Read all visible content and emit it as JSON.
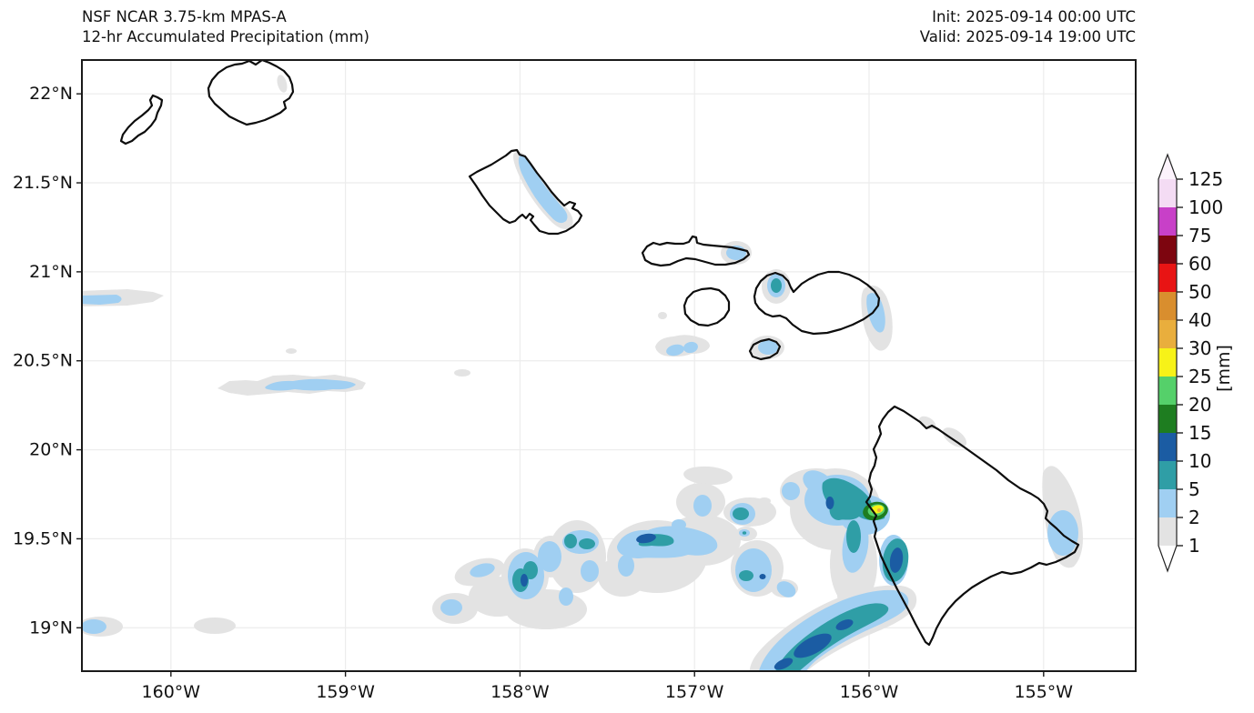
{
  "header": {
    "title_line1": "NSF NCAR 3.75-km MPAS-A",
    "title_line2": "12-hr Accumulated Precipitation (mm)",
    "init": "Init: 2025-09-14 00:00 UTC",
    "valid": "Valid: 2025-09-14 19:00 UTC"
  },
  "axes": {
    "x_ticks": [
      {
        "label": "160°W",
        "lon": 160
      },
      {
        "label": "159°W",
        "lon": 159
      },
      {
        "label": "158°W",
        "lon": 158
      },
      {
        "label": "157°W",
        "lon": 157
      },
      {
        "label": "156°W",
        "lon": 156
      },
      {
        "label": "155°W",
        "lon": 155
      }
    ],
    "y_ticks": [
      {
        "label": "22°N",
        "lat": 22
      },
      {
        "label": "21.5°N",
        "lat": 21.5
      },
      {
        "label": "21°N",
        "lat": 21
      },
      {
        "label": "20.5°N",
        "lat": 20.5
      },
      {
        "label": "20°N",
        "lat": 20
      },
      {
        "label": "19.5°N",
        "lat": 19.5
      },
      {
        "label": "19°N",
        "lat": 19
      }
    ]
  },
  "colorbar": {
    "unit_label": "[mm]",
    "tick_labels": [
      "1",
      "2",
      "5",
      "10",
      "15",
      "20",
      "25",
      "30",
      "40",
      "50",
      "60",
      "75",
      "100",
      "125"
    ],
    "segment_colors": [
      "#e3e3e3",
      "#a0cff2",
      "#2f9ea6",
      "#1b5ca3",
      "#1e7d20",
      "#55d06a",
      "#f7f218",
      "#e9ae3d",
      "#d98e2e",
      "#e81414",
      "#7d050f",
      "#c840c8",
      "#f4dcf4"
    ],
    "over_color": "#fcf3fc",
    "under_color": "#ffffff"
  },
  "palette": {
    "p1": "#e3e3e3",
    "p2": "#a0cff2",
    "p5": "#2f9ea6",
    "p10": "#1b5ca3",
    "p15": "#1e7d20",
    "p20": "#55d06a",
    "p25": "#f7f218",
    "p30": "#e9ae3d"
  },
  "style": {
    "grid": "#ececec",
    "frame": "#1a1a1a",
    "coast": "#0d0d0d",
    "text": "#111111"
  },
  "chart_data": {
    "type": "heatmap",
    "projection": "latitude-longitude map of the Hawaiian Islands",
    "title": "NSF NCAR 3.75-km MPAS-A",
    "subtitle": "12-hr Accumulated Precipitation (mm)",
    "init_label": "Init: 2025-09-14 00:00 UTC",
    "valid_label": "Valid: 2025-09-14 19:00 UTC",
    "x_axis": {
      "tick_labels": [
        "160°W",
        "159°W",
        "158°W",
        "157°W",
        "156°W",
        "155°W"
      ],
      "range_deg_west": [
        160.5,
        154.5
      ]
    },
    "y_axis": {
      "tick_labels": [
        "22°N",
        "21.5°N",
        "21°N",
        "20.5°N",
        "20°N",
        "19.5°N",
        "19°N"
      ],
      "range_deg_north": [
        18.76,
        22.19
      ]
    },
    "colorbar": {
      "label": "[mm]",
      "levels": [
        1,
        2,
        5,
        10,
        15,
        20,
        25,
        30,
        40,
        50,
        60,
        75,
        100,
        125
      ],
      "extend": "both",
      "grid": "off-map colorbar at right"
    },
    "islands": [
      "Niihau",
      "Kauai",
      "Oahu",
      "Molokai",
      "Lanai",
      "Maui",
      "Kahoolawe",
      "Hawaii (Big Island)"
    ],
    "precip_features": [
      {
        "area": "Windward Oahu (Koolau range) band",
        "level_mm": "2-5 with 1-2 fringe"
      },
      {
        "area": "East Molokai",
        "level_mm": "2-5"
      },
      {
        "area": "West Maui Mountains",
        "level_mm": "5-10 core in 2-5"
      },
      {
        "area": "Hana coast, East Maui",
        "level_mm": "2-5"
      },
      {
        "area": "Kahoolawe and blobs SW of Lanai",
        "level_mm": "2-5"
      },
      {
        "area": "Kona coast, Big Island (~19.65N 156W)",
        "level_mm": "isolated 30-40 dot, 25-30 yellow core, 15-25 green ring, widespread 5-15"
      },
      {
        "area": "Offshore band SW of South Point (~18.8-19.1N)",
        "level_mm": "5-10 band with 10-15 cores"
      },
      {
        "area": "Scattered showers 19.1-19.7N, 156.3-158.6W",
        "level_mm": "1-2 field, many 2-5 cells, several 5-10 and small 10-15 cores"
      },
      {
        "area": "Offshore east of Hilo/Puna",
        "level_mm": "2-5 in 1-2 fringe"
      },
      {
        "area": "Streak near 20.4N 158.8W",
        "level_mm": "2-5 in 1-2"
      },
      {
        "area": "West edge streaks near 20.85N and 19N",
        "level_mm": "2-5"
      }
    ]
  }
}
